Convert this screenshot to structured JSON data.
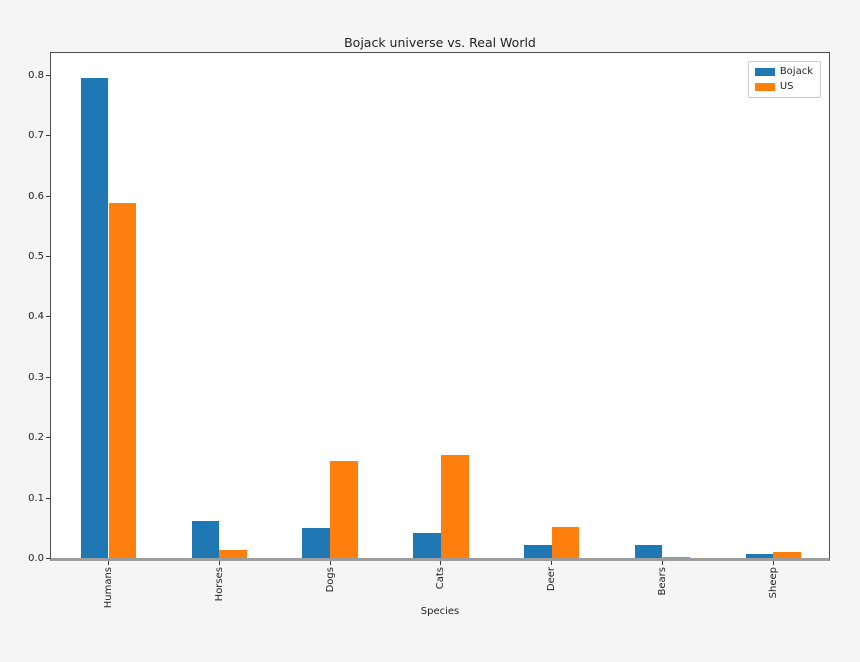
{
  "figure": {
    "background_color": "#f5f5f5",
    "axes_background_color": "#ffffff"
  },
  "chart_data": {
    "type": "bar",
    "title": "Bojack universe vs. Real World",
    "xlabel": "Species",
    "ylabel": "",
    "categories": [
      "Humans",
      "Horses",
      "Dogs",
      "Cats",
      "Deer",
      "Bears",
      "Sheep"
    ],
    "series": [
      {
        "name": "Bojack",
        "color": "#1f77b4",
        "values": [
          0.794,
          0.062,
          0.049,
          0.042,
          0.021,
          0.021,
          0.007
        ]
      },
      {
        "name": "US",
        "color": "#ff7f0e",
        "values": [
          0.588,
          0.014,
          0.16,
          0.17,
          0.052,
          0.002,
          0.01
        ]
      }
    ],
    "ylim": [
      0,
      0.84
    ],
    "yticks": [
      "0.0",
      "0.1",
      "0.2",
      "0.3",
      "0.4",
      "0.5",
      "0.6",
      "0.7",
      "0.8"
    ],
    "legend_position": "upper right",
    "grid": false,
    "xtick_rotation": 90
  }
}
